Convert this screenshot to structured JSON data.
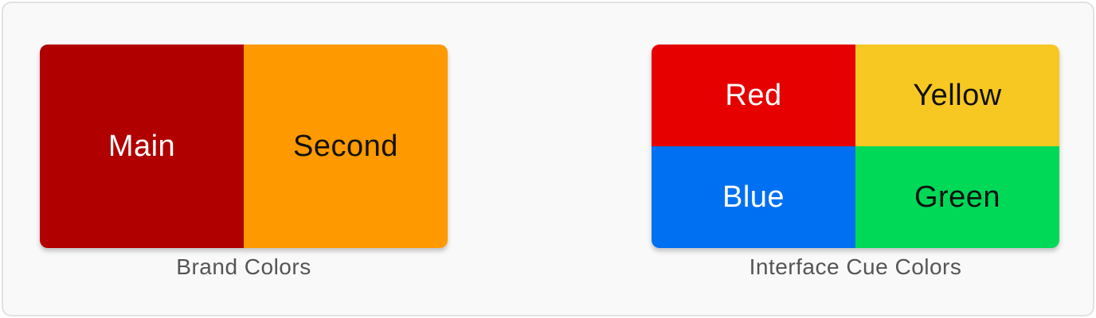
{
  "brand": {
    "caption": "Brand Colors",
    "swatches": [
      {
        "label": "Main",
        "color": "#b00000",
        "text_color": "#ffffff"
      },
      {
        "label": "Second",
        "color": "#ff9900",
        "text_color": "#111111"
      }
    ]
  },
  "cue": {
    "caption": "Interface Cue Colors",
    "swatches": [
      {
        "label": "Red",
        "color": "#e60000",
        "text_color": "#ffffff"
      },
      {
        "label": "Yellow",
        "color": "#f8c822",
        "text_color": "#111111"
      },
      {
        "label": "Blue",
        "color": "#0070f2",
        "text_color": "#ffffff"
      },
      {
        "label": "Green",
        "color": "#00d957",
        "text_color": "#111111"
      }
    ]
  }
}
